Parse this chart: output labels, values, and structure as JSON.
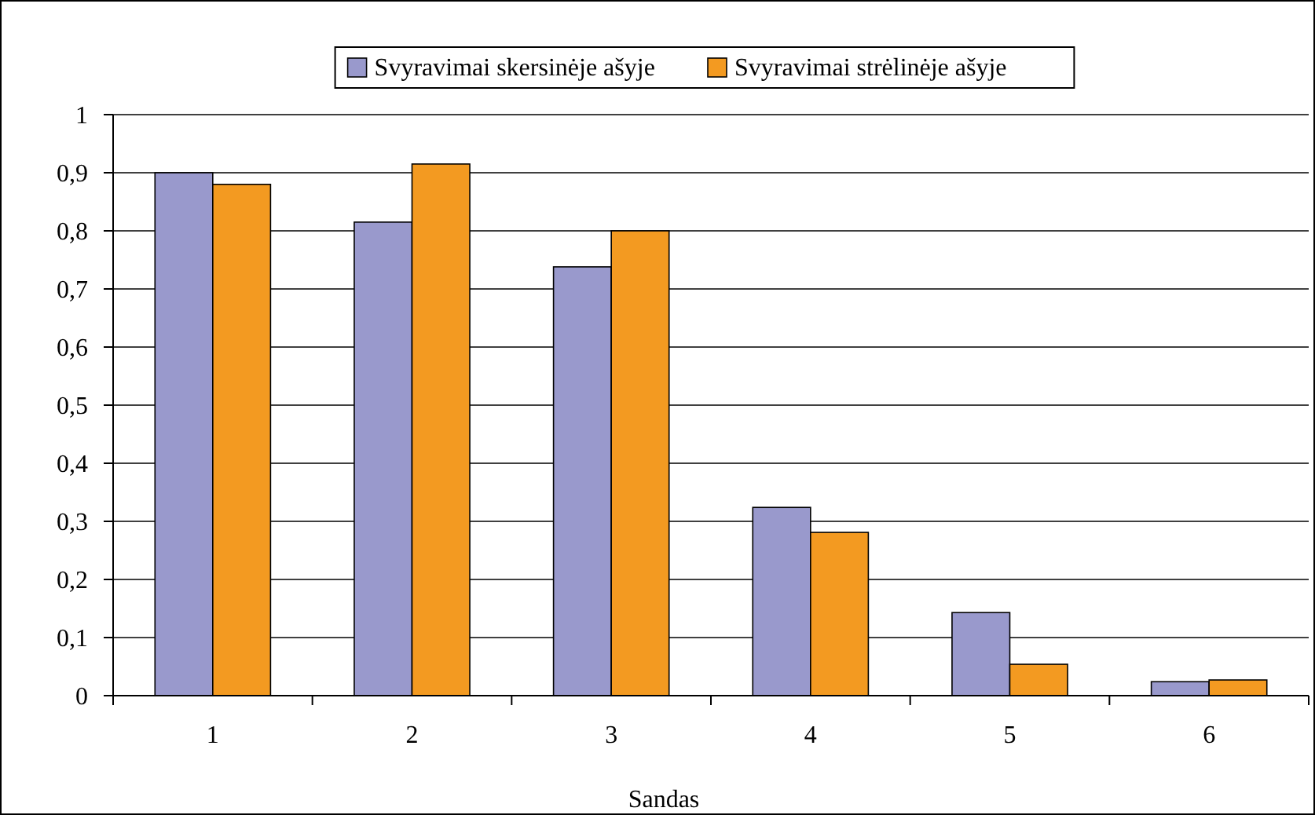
{
  "chart_data": {
    "type": "bar",
    "xlabel": "Sandas",
    "categories": [
      "1",
      "2",
      "3",
      "4",
      "5",
      "6"
    ],
    "series": [
      {
        "name": "Svyravimai skersinėje ašyje",
        "color": "#9999cc",
        "values": [
          0.9,
          0.815,
          0.738,
          0.324,
          0.143,
          0.024
        ]
      },
      {
        "name": "Svyravimai strėlinėje ašyje",
        "color": "#f39a21",
        "values": [
          0.88,
          0.915,
          0.8,
          0.281,
          0.054,
          0.027
        ]
      }
    ],
    "ylim": [
      0,
      1
    ],
    "yticks": [
      0,
      {
        "value": 0.1,
        "label": "0,1"
      },
      {
        "value": 0.2,
        "label": "0,2"
      },
      {
        "value": 0.3,
        "label": "0,3"
      },
      {
        "value": 0.4,
        "label": "0,4"
      },
      {
        "value": 0.5,
        "label": "0,5"
      },
      {
        "value": 0.6,
        "label": "0,6"
      },
      {
        "value": 0.7,
        "label": "0,7"
      },
      {
        "value": 0.8,
        "label": "0,8"
      },
      {
        "value": 0.9,
        "label": "0,9"
      },
      1
    ],
    "grid": "y",
    "legend": "top"
  }
}
